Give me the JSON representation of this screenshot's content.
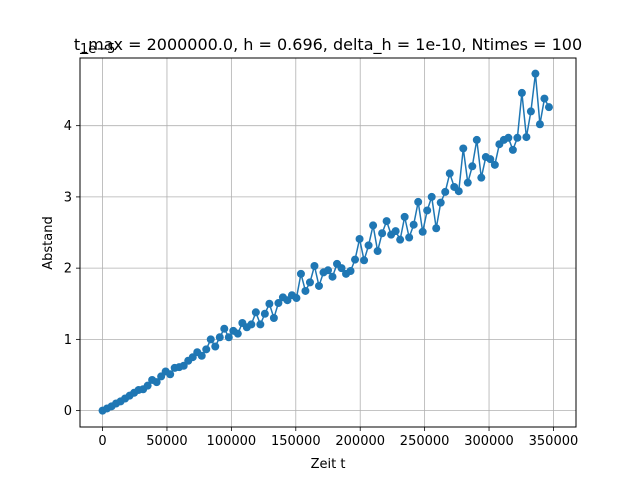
{
  "chart_data": {
    "type": "line",
    "title": "t_max = 2000000.0, h = 0.696, delta_h = 1e-10, Ntimes = 100",
    "xlabel": "Zeit t",
    "ylabel": "Abstand",
    "y_offset_label": "1e−5",
    "xlim": [
      -17500,
      367500
    ],
    "ylim": [
      -0.23,
      4.95
    ],
    "y_scale_exponent": -5,
    "xticks": [
      0,
      50000,
      100000,
      150000,
      200000,
      250000,
      300000,
      350000
    ],
    "xtick_labels": [
      "0",
      "50000",
      "100000",
      "150000",
      "200000",
      "250000",
      "300000",
      "350000"
    ],
    "yticks": [
      0,
      1,
      2,
      3,
      4
    ],
    "ytick_labels": [
      "0",
      "1",
      "2",
      "3",
      "4"
    ],
    "grid": true,
    "line_color": "#1f77b4",
    "marker": "circle",
    "series": [
      {
        "x": [
          0,
          3500,
          7000,
          10500,
          14000,
          17500,
          21000,
          24500,
          28000,
          31500,
          35000,
          38500,
          42000,
          45500,
          49000,
          52500,
          56000,
          59500,
          63000,
          66500,
          70000,
          73500,
          77000,
          80500,
          84000,
          87500,
          91000,
          94500,
          98000,
          101500,
          105000,
          108500,
          112000,
          115500,
          119000,
          122500,
          126000,
          129500,
          133000,
          136500,
          140000,
          143500,
          147000,
          150500,
          154000,
          157500,
          161000,
          164500,
          168000,
          171500,
          175000,
          178500,
          182000,
          185500,
          189000,
          192500,
          196000,
          199500,
          203000,
          206500,
          210000,
          213500,
          217000,
          220500,
          224000,
          227500,
          231000,
          234500,
          238000,
          241500,
          245000,
          248500,
          252000,
          255500,
          259000,
          262500,
          266000,
          269500,
          273000,
          276500,
          280000,
          283500,
          287000,
          290500,
          294000,
          297500,
          301000,
          304500,
          308000,
          311500,
          315000,
          318500,
          322000,
          325500,
          329000,
          332500,
          336000,
          339500,
          343000,
          346500
        ],
        "values": [
          0.0,
          0.03,
          0.06,
          0.1,
          0.13,
          0.17,
          0.21,
          0.25,
          0.29,
          0.3,
          0.35,
          0.43,
          0.4,
          0.48,
          0.55,
          0.51,
          0.6,
          0.61,
          0.63,
          0.7,
          0.75,
          0.82,
          0.77,
          0.86,
          1.0,
          0.9,
          1.03,
          1.15,
          1.03,
          1.12,
          1.08,
          1.23,
          1.17,
          1.21,
          1.38,
          1.21,
          1.36,
          1.5,
          1.3,
          1.51,
          1.59,
          1.55,
          1.62,
          1.58,
          1.92,
          1.68,
          1.8,
          2.03,
          1.75,
          1.94,
          1.97,
          1.88,
          2.06,
          2.0,
          1.92,
          1.96,
          2.12,
          2.41,
          2.11,
          2.32,
          2.6,
          2.24,
          2.49,
          2.66,
          2.47,
          2.52,
          2.4,
          2.72,
          2.43,
          2.61,
          2.93,
          2.51,
          2.81,
          3.0,
          2.56,
          2.92,
          3.07,
          3.33,
          3.14,
          3.08,
          3.68,
          3.2,
          3.43,
          3.8,
          3.27,
          3.56,
          3.53,
          3.45,
          3.74,
          3.8,
          3.83,
          3.66,
          3.83,
          4.46,
          3.84,
          4.2,
          4.73,
          4.02,
          4.38,
          4.26
        ]
      }
    ]
  }
}
